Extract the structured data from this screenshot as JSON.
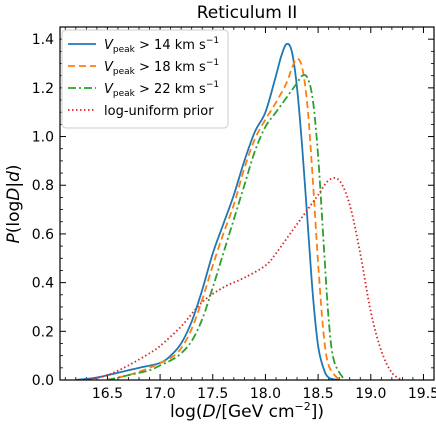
{
  "chart_data": {
    "type": "line",
    "title": "Reticulum II",
    "xlabel_parts": [
      "log(",
      "D",
      "/[GeV cm",
      "−2",
      "])"
    ],
    "ylabel_parts": [
      "P",
      "(log",
      "D",
      "|",
      "d",
      ")"
    ],
    "xlim": [
      16.05,
      19.6
    ],
    "ylim": [
      0,
      1.45
    ],
    "x_ticks": [
      16.5,
      17.0,
      17.5,
      18.0,
      18.5,
      19.0,
      19.5
    ],
    "x_tick_labels": [
      "16.5",
      "17.0",
      "17.5",
      "18.0",
      "18.5",
      "19.0",
      "19.5"
    ],
    "y_ticks": [
      0.0,
      0.2,
      0.4,
      0.6,
      0.8,
      1.0,
      1.2,
      1.4
    ],
    "y_tick_labels": [
      "0.0",
      "0.2",
      "0.4",
      "0.6",
      "0.8",
      "1.0",
      "1.2",
      "1.4"
    ],
    "grid": false,
    "legend_position": "top-left",
    "series": [
      {
        "legend": {
          "pre": "V",
          "sub": "peak",
          "post": " > 14 km s",
          "sup": "−1"
        },
        "color": "#1f77b4",
        "dash": "solid",
        "x": [
          16.2,
          16.4,
          16.6,
          16.8,
          17.0,
          17.1,
          17.2,
          17.3,
          17.4,
          17.5,
          17.6,
          17.7,
          17.8,
          17.9,
          18.0,
          18.1,
          18.15,
          18.2,
          18.25,
          18.3,
          18.35,
          18.4,
          18.45,
          18.5,
          18.55,
          18.6,
          18.7
        ],
        "y": [
          0.0,
          0.01,
          0.03,
          0.05,
          0.07,
          0.1,
          0.15,
          0.24,
          0.37,
          0.52,
          0.64,
          0.76,
          0.9,
          1.02,
          1.1,
          1.25,
          1.33,
          1.38,
          1.35,
          1.2,
          0.95,
          0.65,
          0.35,
          0.14,
          0.05,
          0.01,
          0.0
        ]
      },
      {
        "legend": {
          "pre": "V",
          "sub": "peak",
          "post": " > 18 km s",
          "sup": "−1"
        },
        "color": "#ff7f0e",
        "dash": "dashed",
        "x": [
          16.5,
          16.7,
          16.9,
          17.0,
          17.1,
          17.2,
          17.3,
          17.4,
          17.5,
          17.6,
          17.7,
          17.8,
          17.9,
          18.0,
          18.1,
          18.2,
          18.25,
          18.3,
          18.35,
          18.4,
          18.45,
          18.5,
          18.55,
          18.6,
          18.7
        ],
        "y": [
          0.0,
          0.02,
          0.05,
          0.07,
          0.09,
          0.13,
          0.21,
          0.33,
          0.47,
          0.6,
          0.72,
          0.87,
          0.99,
          1.07,
          1.14,
          1.22,
          1.28,
          1.32,
          1.28,
          1.12,
          0.82,
          0.48,
          0.2,
          0.06,
          0.0
        ]
      },
      {
        "legend": {
          "pre": "V",
          "sub": "peak",
          "post": " > 22 km s",
          "sup": "−1"
        },
        "color": "#2ca02c",
        "dash": "dashdot",
        "x": [
          16.5,
          16.7,
          16.9,
          17.0,
          17.1,
          17.2,
          17.3,
          17.4,
          17.5,
          17.6,
          17.7,
          17.8,
          17.9,
          18.0,
          18.1,
          18.2,
          18.3,
          18.35,
          18.4,
          18.45,
          18.5,
          18.55,
          18.6,
          18.65,
          18.75
        ],
        "y": [
          0.0,
          0.02,
          0.04,
          0.06,
          0.08,
          0.11,
          0.16,
          0.25,
          0.38,
          0.52,
          0.66,
          0.8,
          0.94,
          1.04,
          1.1,
          1.16,
          1.22,
          1.25,
          1.24,
          1.15,
          0.92,
          0.58,
          0.25,
          0.08,
          0.0
        ]
      },
      {
        "legend": {
          "pre": "log-uniform prior",
          "sub": "",
          "post": "",
          "sup": ""
        },
        "color": "#d62728",
        "dash": "dotted",
        "x": [
          16.3,
          16.5,
          16.7,
          16.9,
          17.0,
          17.2,
          17.4,
          17.6,
          17.8,
          18.0,
          18.1,
          18.2,
          18.3,
          18.4,
          18.5,
          18.6,
          18.7,
          18.8,
          18.9,
          19.0,
          19.1,
          19.2,
          19.3
        ],
        "y": [
          0.0,
          0.02,
          0.06,
          0.11,
          0.14,
          0.22,
          0.32,
          0.38,
          0.42,
          0.47,
          0.52,
          0.58,
          0.64,
          0.7,
          0.76,
          0.82,
          0.82,
          0.72,
          0.52,
          0.28,
          0.12,
          0.03,
          0.0
        ]
      }
    ]
  }
}
